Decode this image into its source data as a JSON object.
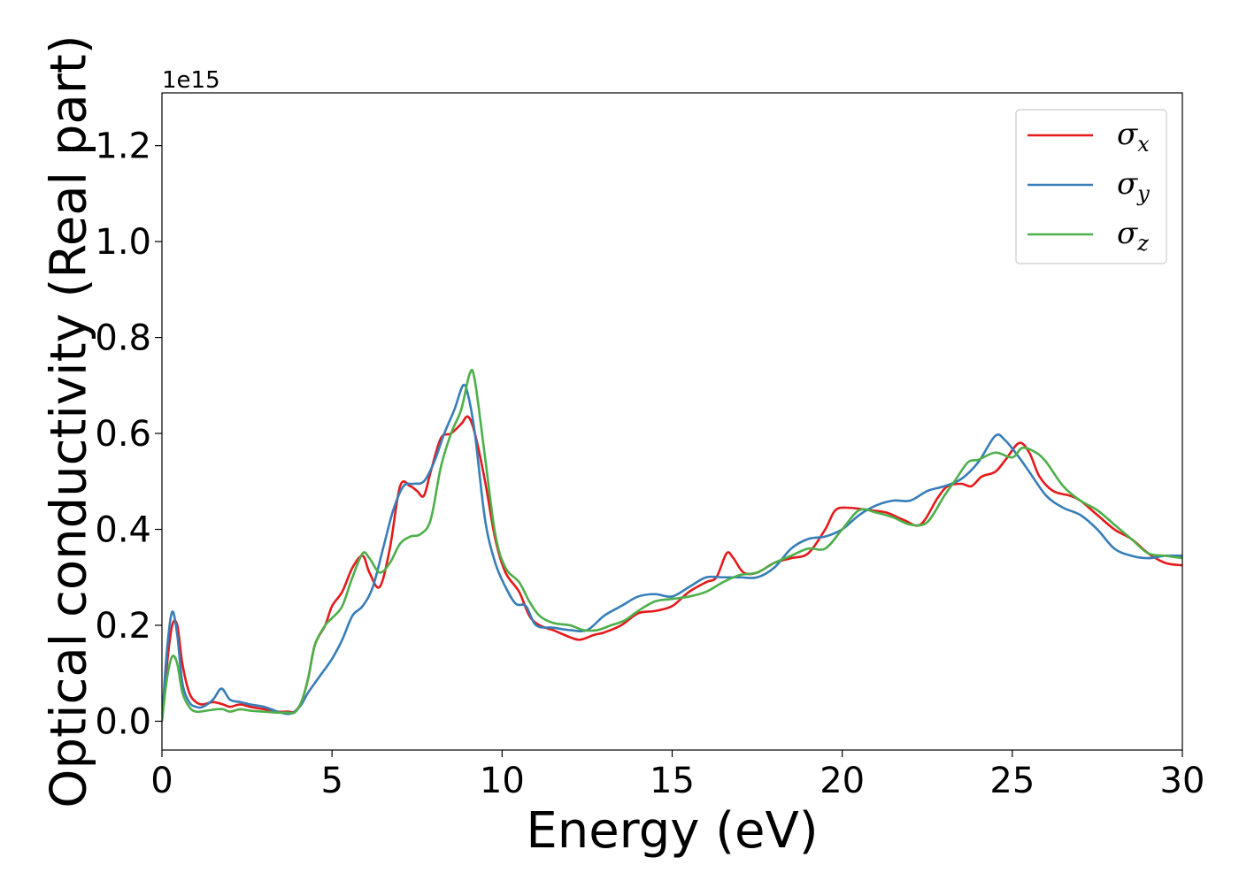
{
  "chart_data": {
    "type": "line",
    "xlabel": "Energy (eV)",
    "ylabel": "Optical conductivity (Real part)",
    "y_offset_text": "1e15",
    "xlim": [
      0,
      30
    ],
    "ylim": [
      -0.06,
      1.31
    ],
    "xticks": [
      0,
      5,
      10,
      15,
      20,
      25,
      30
    ],
    "yticks": [
      0.0,
      0.2,
      0.4,
      0.6,
      0.8,
      1.0,
      1.2
    ],
    "xtick_labels": [
      "0",
      "5",
      "10",
      "15",
      "20",
      "25",
      "30"
    ],
    "ytick_labels": [
      "0.0",
      "0.2",
      "0.4",
      "0.6",
      "0.8",
      "1.0",
      "1.2"
    ],
    "grid": false,
    "legend_position": "top-right",
    "series": [
      {
        "name": "σx",
        "symbol": "σ",
        "subscript": "x",
        "color": "#e41a1c",
        "x": [
          0,
          0.15,
          0.3,
          0.45,
          0.6,
          0.8,
          1.0,
          1.2,
          1.5,
          1.8,
          2.0,
          2.3,
          2.6,
          3.0,
          3.4,
          3.7,
          3.9,
          4.1,
          4.3,
          4.5,
          4.8,
          5.0,
          5.3,
          5.6,
          5.9,
          6.1,
          6.4,
          6.7,
          7.0,
          7.3,
          7.5,
          7.7,
          7.9,
          8.2,
          8.5,
          8.8,
          9.0,
          9.2,
          9.5,
          9.8,
          10.1,
          10.5,
          10.8,
          11.1,
          11.5,
          12.0,
          12.3,
          12.7,
          13.0,
          13.5,
          14.0,
          14.5,
          15.0,
          15.5,
          16.0,
          16.3,
          16.6,
          16.8,
          17.1,
          17.5,
          18.0,
          18.5,
          19.0,
          19.5,
          19.8,
          20.2,
          20.8,
          21.3,
          21.8,
          22.3,
          22.8,
          23.1,
          23.5,
          23.8,
          24.1,
          24.5,
          24.8,
          25.2,
          25.5,
          25.8,
          26.2,
          26.7,
          27.0,
          27.5,
          28.0,
          28.5,
          29.0,
          29.5,
          30.0
        ],
        "y": [
          0,
          0.12,
          0.2,
          0.2,
          0.12,
          0.06,
          0.04,
          0.035,
          0.04,
          0.035,
          0.03,
          0.035,
          0.03,
          0.025,
          0.02,
          0.02,
          0.02,
          0.04,
          0.09,
          0.16,
          0.2,
          0.24,
          0.27,
          0.32,
          0.345,
          0.31,
          0.28,
          0.36,
          0.49,
          0.49,
          0.48,
          0.47,
          0.52,
          0.59,
          0.6,
          0.62,
          0.635,
          0.6,
          0.5,
          0.38,
          0.31,
          0.27,
          0.22,
          0.2,
          0.19,
          0.175,
          0.17,
          0.18,
          0.185,
          0.2,
          0.225,
          0.23,
          0.24,
          0.27,
          0.29,
          0.3,
          0.35,
          0.34,
          0.31,
          0.31,
          0.33,
          0.34,
          0.35,
          0.4,
          0.44,
          0.445,
          0.44,
          0.435,
          0.42,
          0.41,
          0.465,
          0.49,
          0.495,
          0.49,
          0.51,
          0.52,
          0.545,
          0.58,
          0.56,
          0.51,
          0.48,
          0.47,
          0.46,
          0.43,
          0.4,
          0.38,
          0.35,
          0.33,
          0.325
        ]
      },
      {
        "name": "σy",
        "symbol": "σ",
        "subscript": "y",
        "color": "#377eb8",
        "x": [
          0,
          0.15,
          0.3,
          0.45,
          0.6,
          0.8,
          1.0,
          1.2,
          1.5,
          1.75,
          2.0,
          2.3,
          2.6,
          3.0,
          3.4,
          3.7,
          3.9,
          4.1,
          4.3,
          4.6,
          5.0,
          5.3,
          5.6,
          5.9,
          6.2,
          6.5,
          6.8,
          7.1,
          7.4,
          7.7,
          8.0,
          8.3,
          8.6,
          8.85,
          9.0,
          9.2,
          9.5,
          9.8,
          10.1,
          10.4,
          10.7,
          11.0,
          11.5,
          12.0,
          12.5,
          13.0,
          13.5,
          14.0,
          14.5,
          15.0,
          15.5,
          16.0,
          16.5,
          17.0,
          17.5,
          18.0,
          18.5,
          19.0,
          19.5,
          20.0,
          20.5,
          21.0,
          21.5,
          22.0,
          22.5,
          23.0,
          23.5,
          24.0,
          24.5,
          24.8,
          25.2,
          25.5,
          26.0,
          26.5,
          27.0,
          27.5,
          28.0,
          28.5,
          29.0,
          29.5,
          30.0
        ],
        "y": [
          0,
          0.15,
          0.228,
          0.18,
          0.08,
          0.04,
          0.03,
          0.03,
          0.045,
          0.068,
          0.045,
          0.04,
          0.035,
          0.03,
          0.02,
          0.015,
          0.02,
          0.035,
          0.06,
          0.09,
          0.13,
          0.17,
          0.22,
          0.24,
          0.28,
          0.36,
          0.44,
          0.49,
          0.495,
          0.5,
          0.54,
          0.6,
          0.65,
          0.7,
          0.68,
          0.6,
          0.42,
          0.33,
          0.28,
          0.245,
          0.24,
          0.2,
          0.195,
          0.19,
          0.19,
          0.22,
          0.24,
          0.26,
          0.265,
          0.26,
          0.28,
          0.3,
          0.3,
          0.3,
          0.3,
          0.32,
          0.36,
          0.38,
          0.385,
          0.4,
          0.43,
          0.45,
          0.46,
          0.46,
          0.48,
          0.49,
          0.505,
          0.54,
          0.595,
          0.585,
          0.55,
          0.52,
          0.47,
          0.445,
          0.43,
          0.4,
          0.36,
          0.345,
          0.34,
          0.345,
          0.345
        ]
      },
      {
        "name": "σz",
        "symbol": "σ",
        "subscript": "z",
        "color": "#4daf4a",
        "x": [
          0,
          0.15,
          0.3,
          0.45,
          0.6,
          0.8,
          1.0,
          1.3,
          1.6,
          1.8,
          2.0,
          2.3,
          2.6,
          3.0,
          3.4,
          3.7,
          3.9,
          4.1,
          4.3,
          4.5,
          4.8,
          5.0,
          5.3,
          5.6,
          5.9,
          6.1,
          6.4,
          6.7,
          7.0,
          7.3,
          7.6,
          7.9,
          8.2,
          8.5,
          8.8,
          9.05,
          9.2,
          9.5,
          9.8,
          10.1,
          10.5,
          10.8,
          11.1,
          11.5,
          12.0,
          12.4,
          12.8,
          13.2,
          13.6,
          14.0,
          14.5,
          15.0,
          15.5,
          16.0,
          16.5,
          17.0,
          17.5,
          18.0,
          18.5,
          19.0,
          19.5,
          20.0,
          20.5,
          21.0,
          21.5,
          22.0,
          22.5,
          23.0,
          23.3,
          23.7,
          24.0,
          24.5,
          25.0,
          25.3,
          25.7,
          26.0,
          26.5,
          27.0,
          27.5,
          28.0,
          28.5,
          29.0,
          29.5,
          30.0
        ],
        "y": [
          0,
          0.09,
          0.135,
          0.12,
          0.06,
          0.03,
          0.02,
          0.022,
          0.025,
          0.025,
          0.02,
          0.025,
          0.022,
          0.02,
          0.018,
          0.018,
          0.018,
          0.04,
          0.09,
          0.16,
          0.2,
          0.215,
          0.24,
          0.3,
          0.35,
          0.34,
          0.31,
          0.33,
          0.37,
          0.385,
          0.39,
          0.42,
          0.53,
          0.6,
          0.65,
          0.725,
          0.71,
          0.55,
          0.39,
          0.32,
          0.29,
          0.25,
          0.22,
          0.205,
          0.2,
          0.19,
          0.19,
          0.2,
          0.21,
          0.23,
          0.25,
          0.255,
          0.26,
          0.27,
          0.29,
          0.305,
          0.31,
          0.33,
          0.345,
          0.36,
          0.36,
          0.4,
          0.44,
          0.435,
          0.425,
          0.41,
          0.415,
          0.47,
          0.5,
          0.54,
          0.545,
          0.56,
          0.55,
          0.57,
          0.56,
          0.54,
          0.49,
          0.46,
          0.44,
          0.41,
          0.38,
          0.35,
          0.345,
          0.34
        ]
      }
    ]
  }
}
